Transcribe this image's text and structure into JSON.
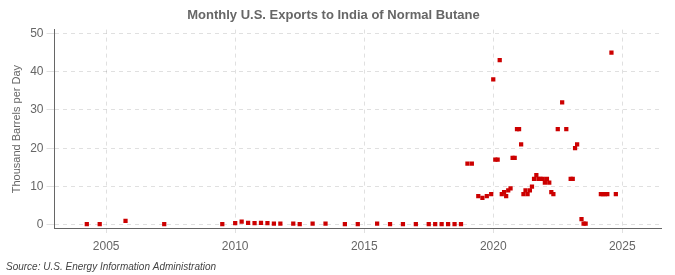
{
  "chart_data": {
    "type": "scatter",
    "title": "Monthly U.S. Exports to India of Normal Butane",
    "ylabel": "Thousand Barrels per Day",
    "annotations": [
      "Source: U.S. Energy Information Administration"
    ],
    "color": "#cc0000",
    "marker": "square",
    "grid": true,
    "xlim": [
      2003.0,
      2026.5
    ],
    "ylim": [
      -1,
      51
    ],
    "xticks": [
      2005,
      2010,
      2015,
      2020,
      2025
    ],
    "yticks": [
      0,
      10,
      20,
      30,
      40,
      50
    ],
    "x": [
      2004.25,
      2004.75,
      2005.75,
      2007.25,
      2009.5,
      2010.0,
      2010.25,
      2010.5,
      2010.75,
      2011.0,
      2011.25,
      2011.5,
      2011.75,
      2012.25,
      2012.5,
      2013.0,
      2013.5,
      2014.25,
      2014.75,
      2015.5,
      2016.0,
      2016.5,
      2017.0,
      2017.5,
      2017.75,
      2018.0,
      2018.25,
      2018.5,
      2018.75,
      2019.0,
      2019.17,
      2019.42,
      2019.58,
      2019.75,
      2019.92,
      2020.0,
      2020.08,
      2020.17,
      2020.25,
      2020.33,
      2020.42,
      2020.5,
      2020.58,
      2020.67,
      2020.75,
      2020.83,
      2020.92,
      2021.0,
      2021.08,
      2021.17,
      2021.25,
      2021.33,
      2021.42,
      2021.5,
      2021.58,
      2021.67,
      2021.75,
      2021.83,
      2021.92,
      2022.0,
      2022.08,
      2022.17,
      2022.25,
      2022.33,
      2022.5,
      2022.67,
      2022.83,
      2023.0,
      2023.08,
      2023.17,
      2023.25,
      2023.42,
      2023.5,
      2023.58,
      2024.17,
      2024.25,
      2024.33,
      2024.42,
      2024.58,
      2024.75
    ],
    "values": [
      0.2,
      0.2,
      1.0,
      0.2,
      0.2,
      0.4,
      0.8,
      0.5,
      0.4,
      0.5,
      0.4,
      0.3,
      0.3,
      0.3,
      0.2,
      0.3,
      0.3,
      0.2,
      0.2,
      0.3,
      0.2,
      0.2,
      0.2,
      0.2,
      0.2,
      0.2,
      0.2,
      0.2,
      0.2,
      16.0,
      16.0,
      7.5,
      7.0,
      7.5,
      8.0,
      38.0,
      17.0,
      17.0,
      43.0,
      8.0,
      8.5,
      7.5,
      9.0,
      9.5,
      17.5,
      17.5,
      25.0,
      25.0,
      21.0,
      8.0,
      9.0,
      8.0,
      9.0,
      10.0,
      12.0,
      13.0,
      12.0,
      12.0,
      12.0,
      11.0,
      12.0,
      11.0,
      8.5,
      8.0,
      25.0,
      32.0,
      25.0,
      12.0,
      12.0,
      20.0,
      21.0,
      1.5,
      0.3,
      0.3,
      8.0,
      8.0,
      8.0,
      8.0,
      45.0,
      8.0
    ]
  }
}
